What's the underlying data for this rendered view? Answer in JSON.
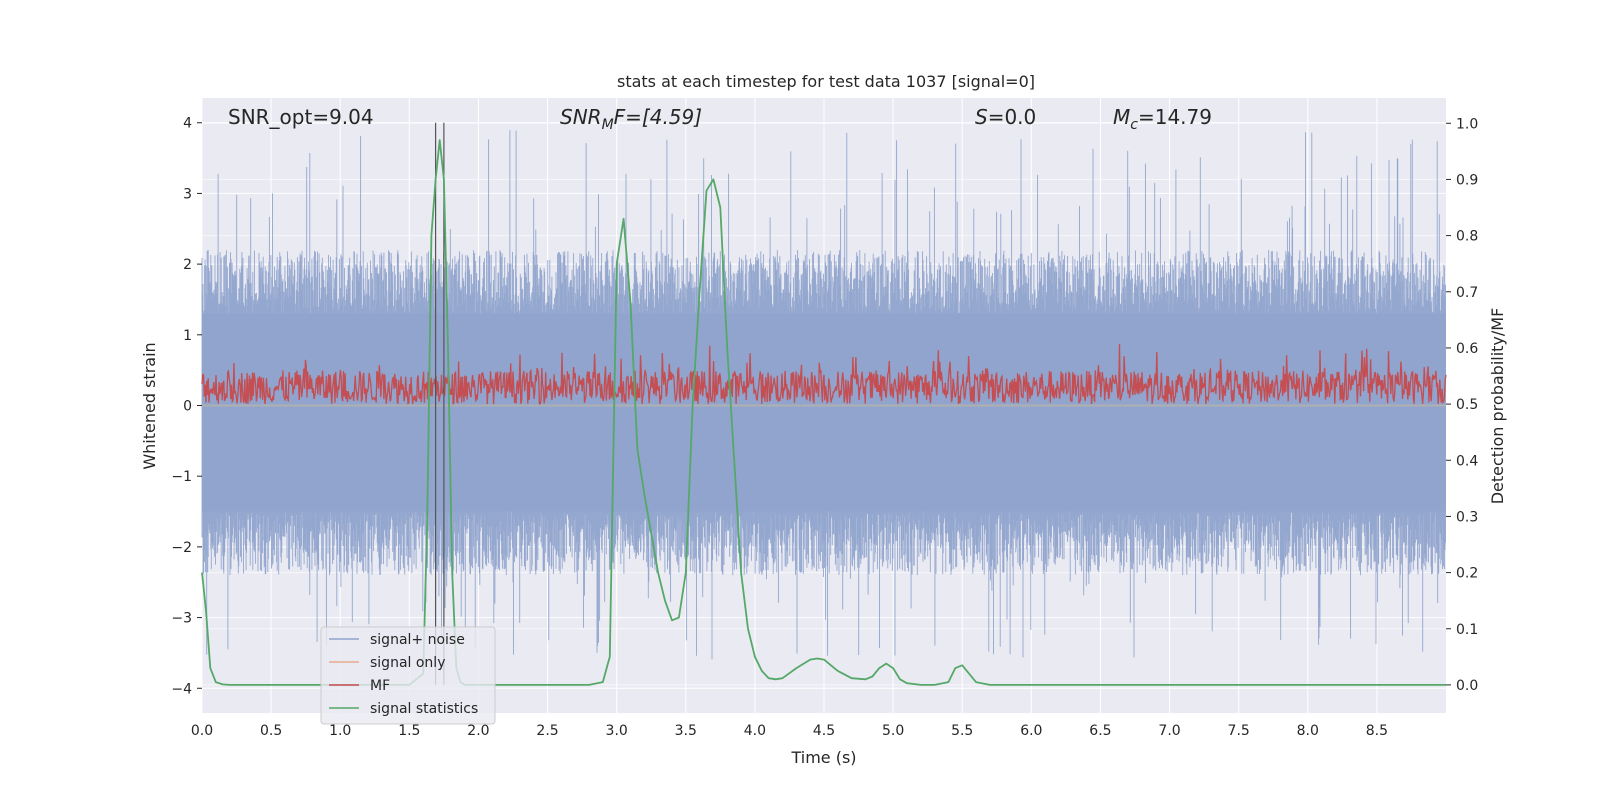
{
  "chart_data": {
    "type": "line",
    "title": "stats at each timestep for test data 1037 [signal=0]",
    "xlabel": "Time (s)",
    "ylabel": "Whitened strain",
    "y2label": "Detection probability/MF",
    "xlim": [
      0,
      9
    ],
    "ylim": [
      -4.35,
      4.35
    ],
    "y2lim": [
      -0.05,
      1.045
    ],
    "xticks": [
      "0.0",
      "0.5",
      "1.0",
      "1.5",
      "2.0",
      "2.5",
      "3.0",
      "3.5",
      "4.0",
      "4.5",
      "5.0",
      "5.5",
      "6.0",
      "6.5",
      "7.0",
      "7.5",
      "8.0",
      "8.5"
    ],
    "xtick_values": [
      0,
      0.5,
      1,
      1.5,
      2,
      2.5,
      3,
      3.5,
      4,
      4.5,
      5,
      5.5,
      6,
      6.5,
      7,
      7.5,
      8,
      8.5
    ],
    "yticks": [
      "−4",
      "−3",
      "−2",
      "−1",
      "0",
      "1",
      "2",
      "3",
      "4"
    ],
    "ytick_values": [
      -4,
      -3,
      -2,
      -1,
      0,
      1,
      2,
      3,
      4
    ],
    "y2ticks": [
      "0.0",
      "0.1",
      "0.2",
      "0.3",
      "0.4",
      "0.5",
      "0.6",
      "0.7",
      "0.8",
      "0.9",
      "1.0"
    ],
    "y2tick_values": [
      0,
      0.1,
      0.2,
      0.3,
      0.4,
      0.5,
      0.6,
      0.7,
      0.8,
      0.9,
      1.0
    ],
    "grid": true,
    "legend_position": "lower-left",
    "annotations": {
      "snr_opt": "SNR_opt=9.04",
      "snr_mf_var": "SNR",
      "snr_mf_sub": "M",
      "snr_mf_rest": "F=[4.59]",
      "s_var": "S",
      "s_rest": "=0.0",
      "mc_var": "M",
      "mc_sub": "c",
      "mc_rest": "=14.79"
    },
    "series": [
      {
        "name": "signal+ noise",
        "color": "#8fa3cc",
        "axis": "left",
        "amplitude_range": [
          -3.6,
          3.95
        ],
        "description_values": "noise band"
      },
      {
        "name": "signal only",
        "color": "#e8a98f",
        "axis": "left",
        "values": []
      },
      {
        "name": "MF",
        "color": "#c44e52",
        "axis": "right",
        "range": [
          0.5,
          0.63
        ]
      },
      {
        "name": "signal statistics",
        "color": "#55a868",
        "axis": "right",
        "x": [
          0.0,
          0.03,
          0.06,
          0.1,
          0.15,
          0.2,
          0.3,
          0.5,
          1.0,
          1.5,
          1.6,
          1.63,
          1.66,
          1.69,
          1.72,
          1.75,
          1.78,
          1.81,
          1.84,
          1.87,
          1.9,
          1.95,
          2.0,
          2.5,
          2.8,
          2.9,
          2.95,
          3.0,
          3.05,
          3.1,
          3.15,
          3.2,
          3.25,
          3.3,
          3.35,
          3.4,
          3.45,
          3.5,
          3.55,
          3.6,
          3.65,
          3.7,
          3.75,
          3.8,
          3.85,
          3.9,
          3.95,
          4.0,
          4.05,
          4.1,
          4.15,
          4.2,
          4.3,
          4.4,
          4.45,
          4.5,
          4.55,
          4.6,
          4.7,
          4.8,
          4.85,
          4.9,
          4.95,
          5.0,
          5.05,
          5.1,
          5.2,
          5.3,
          5.4,
          5.45,
          5.5,
          5.55,
          5.6,
          5.7,
          5.8,
          5.9,
          6.0,
          7.0,
          8.0,
          9.0
        ],
        "y": [
          0.2,
          0.13,
          0.03,
          0.005,
          0.001,
          0.0,
          0.0,
          0.0,
          0.0,
          0.0,
          0.02,
          0.3,
          0.8,
          0.9,
          0.97,
          0.9,
          0.6,
          0.2,
          0.03,
          0.005,
          0.0,
          0.0,
          0.0,
          0.0,
          0.0,
          0.005,
          0.05,
          0.75,
          0.83,
          0.68,
          0.42,
          0.34,
          0.27,
          0.2,
          0.15,
          0.115,
          0.12,
          0.2,
          0.5,
          0.7,
          0.88,
          0.9,
          0.85,
          0.6,
          0.4,
          0.2,
          0.1,
          0.05,
          0.025,
          0.012,
          0.01,
          0.012,
          0.03,
          0.045,
          0.047,
          0.045,
          0.035,
          0.025,
          0.012,
          0.01,
          0.015,
          0.03,
          0.038,
          0.03,
          0.01,
          0.003,
          0.0,
          0.0,
          0.005,
          0.03,
          0.035,
          0.02,
          0.005,
          0.0,
          0.0,
          0.0,
          0.0,
          0.0,
          0.0,
          0.0
        ]
      }
    ],
    "vertical_markers": [
      1.69,
      1.75
    ]
  }
}
